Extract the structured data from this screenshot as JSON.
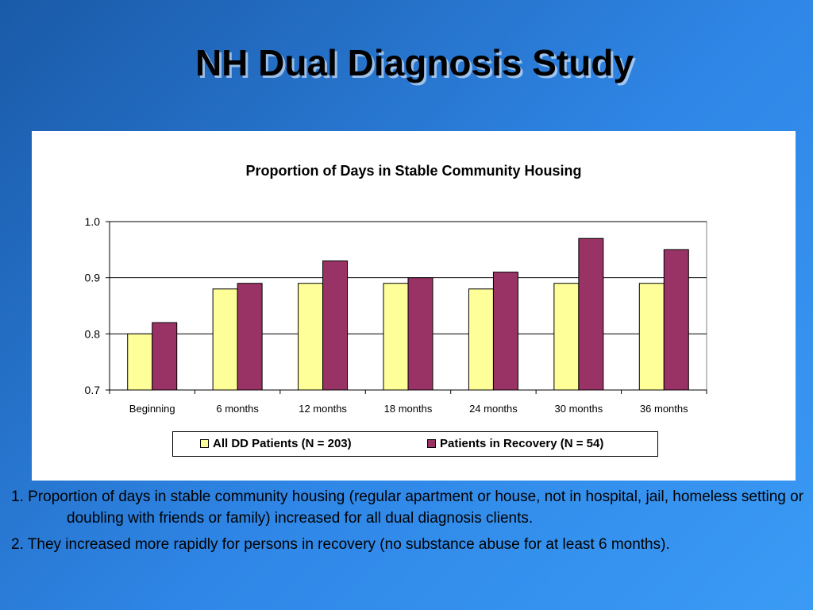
{
  "slide": {
    "title": "NH Dual Diagnosis Study",
    "notes": [
      "1. Proportion of days in stable community housing (regular apartment or house, not in hospital, jail, homeless setting or doubling with friends or family) increased for all dual diagnosis clients.",
      "2. They increased more rapidly for persons in recovery (no substance abuse for at least 6 months)."
    ]
  },
  "chart_data": {
    "type": "bar",
    "title": "Proportion of Days in Stable Community Housing",
    "categories": [
      "Beginning",
      "6 months",
      "12 months",
      "18 months",
      "24 months",
      "30 months",
      "36 months"
    ],
    "series": [
      {
        "name": "All DD Patients (N = 203)",
        "values": [
          0.8,
          0.88,
          0.89,
          0.89,
          0.88,
          0.89,
          0.89
        ],
        "color": "#ffff99"
      },
      {
        "name": "Patients in Recovery (N = 54)",
        "values": [
          0.82,
          0.89,
          0.93,
          0.9,
          0.91,
          0.97,
          0.95
        ],
        "color": "#993366"
      }
    ],
    "ylim": [
      0.7,
      1.0
    ],
    "yticks": [
      "0.7",
      "0.8",
      "0.9",
      "1.0"
    ],
    "xlabel": "",
    "ylabel": "",
    "grid": true,
    "legend_position": "bottom"
  }
}
